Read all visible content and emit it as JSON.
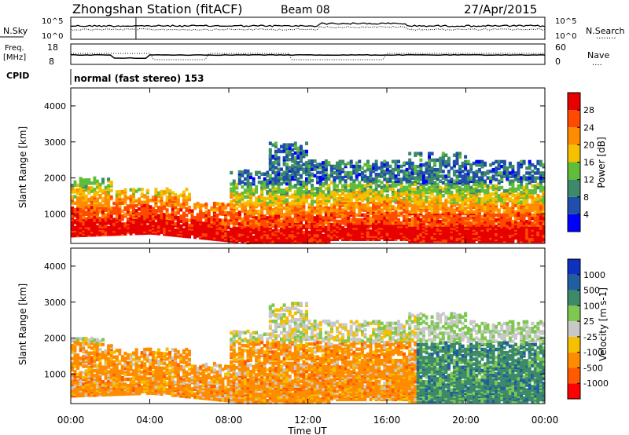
{
  "header": {
    "station": "Zhongshan Station (fitACF)",
    "beam": "Beam 08",
    "date": "27/Apr/2015"
  },
  "summary_panels": {
    "nsky_label": "N.Sky",
    "nsearch_label": "N.Search",
    "nsky_ticks": [
      "10^5",
      "10^0"
    ],
    "nsearch_ticks": [
      "10^5",
      "10^0"
    ],
    "freq_label": "Freq.",
    "freq_unit": "[MHz]",
    "freq_ticks": [
      "18",
      "8"
    ],
    "nave_label": "Nave",
    "nave_ticks": [
      "60",
      "0"
    ],
    "cpid_label": "CPID",
    "cpid_value": "normal (fast stereo) 153"
  },
  "legend_markers": {
    "dotted": "........",
    "dots": "...."
  },
  "colors": {
    "power": [
      "#0000ff",
      "#1f4faa",
      "#3d8a6a",
      "#5fbd3a",
      "#f5c000",
      "#ff8c00",
      "#ff4a00",
      "#e60000"
    ],
    "velocity": [
      "#ff0000",
      "#ff5a00",
      "#ff8c00",
      "#f5c000",
      "#c8c8c8",
      "#7ec850",
      "#3d8a6a",
      "#1f5fa0",
      "#1030c0"
    ]
  },
  "chart_data": [
    {
      "type": "heatmap",
      "name": "power-panel",
      "ylabel": "Slant Range [km]",
      "y_ticks": [
        "4000",
        "3000",
        "2000",
        "1000"
      ],
      "y_tick_values": [
        4000,
        3000,
        2000,
        1000
      ],
      "ylim": [
        180,
        4500
      ],
      "xlim": [
        0,
        24
      ],
      "x_ticks": [
        "00:00",
        "04:00",
        "08:00",
        "12:00",
        "16:00",
        "20:00",
        "00:00"
      ],
      "x_tick_values": [
        0,
        4,
        8,
        12,
        16,
        20,
        24
      ],
      "colorbar": {
        "label": "Power [dB]",
        "tick_labels": [
          "28",
          "24",
          "20",
          "16",
          "12",
          "8",
          "4"
        ],
        "tick_values": [
          28,
          24,
          20,
          16,
          12,
          8,
          4
        ]
      }
    },
    {
      "type": "heatmap",
      "name": "velocity-panel",
      "ylabel": "Slant Range [km]",
      "xlabel": "Time UT",
      "y_ticks": [
        "4000",
        "3000",
        "2000",
        "1000"
      ],
      "y_tick_values": [
        4000,
        3000,
        2000,
        1000
      ],
      "ylim": [
        180,
        4500
      ],
      "xlim": [
        0,
        24
      ],
      "x_ticks": [
        "00:00",
        "04:00",
        "08:00",
        "12:00",
        "16:00",
        "20:00",
        "00:00"
      ],
      "x_tick_values": [
        0,
        4,
        8,
        12,
        16,
        20,
        24
      ],
      "colorbar": {
        "label": "Velocity [m s-1]",
        "tick_labels": [
          "1000",
          "500",
          "100",
          "25",
          "-25",
          "-100",
          "-500",
          "-1000"
        ],
        "tick_values": [
          1000,
          500,
          100,
          25,
          -25,
          -100,
          -500,
          -1000
        ]
      }
    }
  ]
}
